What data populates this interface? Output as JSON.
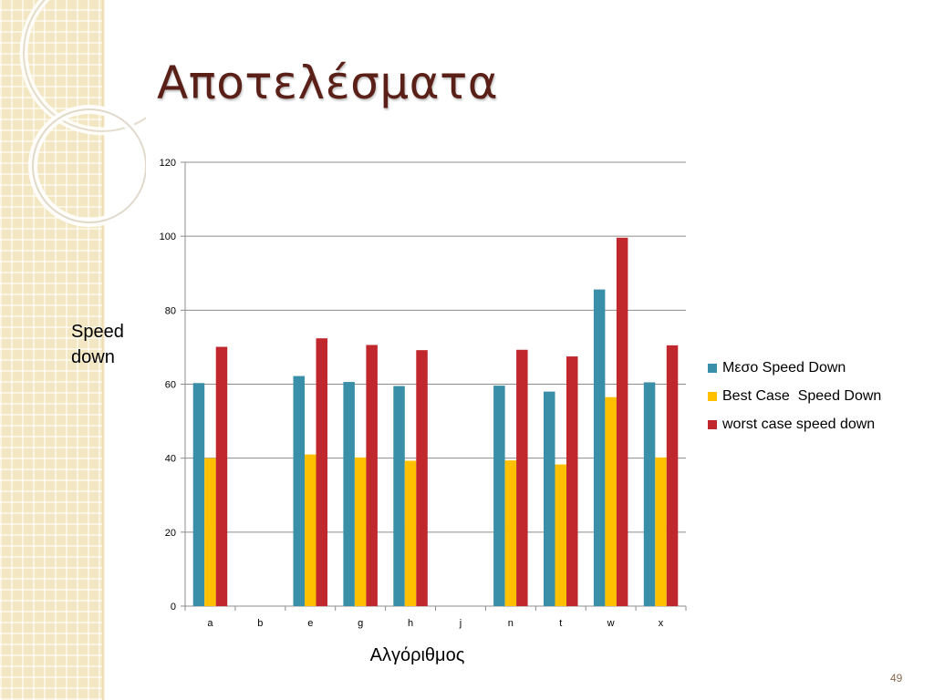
{
  "slide": {
    "title": "Αποτελέσματα",
    "page_number": "49"
  },
  "colors": {
    "series_1": "#3a8fa8",
    "series_2": "#ffc000",
    "series_3": "#c0282d",
    "title": "#5a2018",
    "background_strip": "#f3e6c2"
  },
  "chart_data": {
    "type": "bar",
    "categories": [
      "a",
      "b",
      "e",
      "g",
      "h",
      "j",
      "n",
      "t",
      "w",
      "x"
    ],
    "series": [
      {
        "name": "Μεσο Speed Down",
        "values": [
          60.3,
          null,
          62.2,
          60.6,
          59.5,
          null,
          59.6,
          58.0,
          85.6,
          60.5
        ]
      },
      {
        "name": "Best Case  Speed Down",
        "values": [
          40.0,
          null,
          41.0,
          40.2,
          39.3,
          null,
          39.4,
          38.3,
          56.5,
          40.2
        ]
      },
      {
        "name": "worst case speed down",
        "values": [
          70.1,
          null,
          72.4,
          70.6,
          69.2,
          null,
          69.3,
          67.5,
          99.6,
          70.5
        ]
      }
    ],
    "xlabel": "Αλγόριθμος",
    "ylabel": "Speed down",
    "ylim": [
      0,
      120
    ],
    "yticks": [
      "0",
      "20",
      "40",
      "60",
      "80",
      "100",
      "120"
    ],
    "grid": true,
    "legend_position": "right"
  }
}
